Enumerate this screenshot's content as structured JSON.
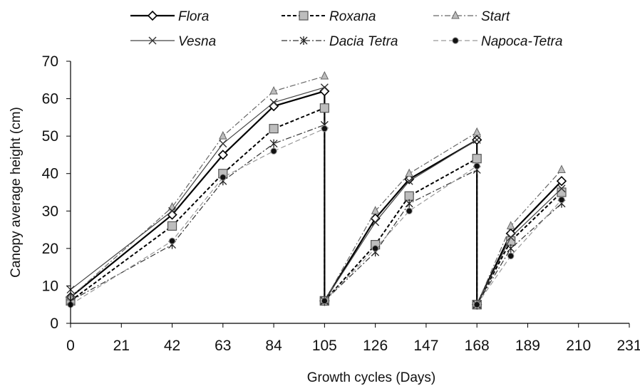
{
  "chart_data": {
    "type": "line",
    "xlabel": "Growth cycles (Days)",
    "ylabel": "Canopy average height (cm)",
    "xlim": [
      0,
      231
    ],
    "ylim": [
      0,
      70
    ],
    "x_ticks": [
      0,
      21,
      42,
      63,
      84,
      105,
      126,
      147,
      168,
      189,
      210,
      231
    ],
    "y_ticks": [
      0,
      10,
      20,
      30,
      40,
      50,
      60,
      70
    ],
    "legend_position": "top",
    "grid": false,
    "series": [
      {
        "name": "Flora",
        "style": "solid-diamond",
        "color": "#000000",
        "segments": [
          [
            [
              0,
              7
            ],
            [
              42,
              29
            ],
            [
              63,
              45
            ],
            [
              84,
              58
            ],
            [
              105,
              62
            ],
            [
              105,
              6
            ]
          ],
          [
            [
              105,
              6
            ],
            [
              126,
              28
            ],
            [
              140,
              38.5
            ],
            [
              168,
              49
            ],
            [
              168,
              5
            ]
          ],
          [
            [
              168,
              5
            ],
            [
              182,
              24
            ],
            [
              203,
              38
            ]
          ]
        ]
      },
      {
        "name": "Roxana",
        "style": "dashed-square",
        "color": "#000000",
        "segments": [
          [
            [
              0,
              6
            ],
            [
              42,
              26
            ],
            [
              63,
              40
            ],
            [
              84,
              52
            ],
            [
              105,
              57.5
            ],
            [
              105,
              6
            ]
          ],
          [
            [
              105,
              6
            ],
            [
              126,
              21
            ],
            [
              140,
              34
            ],
            [
              168,
              44
            ],
            [
              168,
              5
            ]
          ],
          [
            [
              168,
              5
            ],
            [
              182,
              22
            ],
            [
              203,
              35
            ]
          ]
        ]
      },
      {
        "name": "Start",
        "style": "dashdot-triangle",
        "color": "#555555",
        "segments": [
          [
            [
              0,
              7
            ],
            [
              42,
              31
            ],
            [
              63,
              50
            ],
            [
              84,
              62
            ],
            [
              105,
              66
            ]
          ],
          [
            [
              105,
              6
            ],
            [
              126,
              30
            ],
            [
              140,
              40
            ],
            [
              168,
              51
            ]
          ],
          [
            [
              168,
              5
            ],
            [
              182,
              26
            ],
            [
              203,
              41
            ]
          ]
        ]
      },
      {
        "name": "Vesna",
        "style": "thin-x",
        "color": "#333333",
        "segments": [
          [
            [
              0,
              9
            ],
            [
              42,
              30
            ],
            [
              63,
              48
            ],
            [
              84,
              59
            ],
            [
              105,
              63
            ]
          ],
          [
            [
              105,
              6
            ],
            [
              126,
              27
            ],
            [
              140,
              38
            ],
            [
              168,
              49
            ]
          ],
          [
            [
              168,
              5
            ],
            [
              182,
              23
            ],
            [
              203,
              36
            ]
          ]
        ]
      },
      {
        "name": "Dacia Tetra",
        "style": "dashdot-star",
        "color": "#222222",
        "segments": [
          [
            [
              0,
              6
            ],
            [
              42,
              21
            ],
            [
              63,
              38
            ],
            [
              84,
              48
            ],
            [
              105,
              53
            ]
          ],
          [
            [
              105,
              6
            ],
            [
              126,
              19
            ],
            [
              140,
              32
            ],
            [
              168,
              41
            ]
          ],
          [
            [
              168,
              5
            ],
            [
              182,
              20
            ],
            [
              203,
              32
            ]
          ]
        ]
      },
      {
        "name": "Napoca-Tetra",
        "style": "dashed-dot",
        "color": "#999999",
        "segments": [
          [
            [
              0,
              5
            ],
            [
              42,
              22
            ],
            [
              63,
              39
            ],
            [
              84,
              46
            ],
            [
              105,
              52
            ]
          ],
          [
            [
              105,
              6
            ],
            [
              126,
              20
            ],
            [
              140,
              30
            ],
            [
              168,
              42
            ]
          ],
          [
            [
              168,
              5
            ],
            [
              182,
              18
            ],
            [
              203,
              33
            ]
          ]
        ]
      }
    ]
  }
}
